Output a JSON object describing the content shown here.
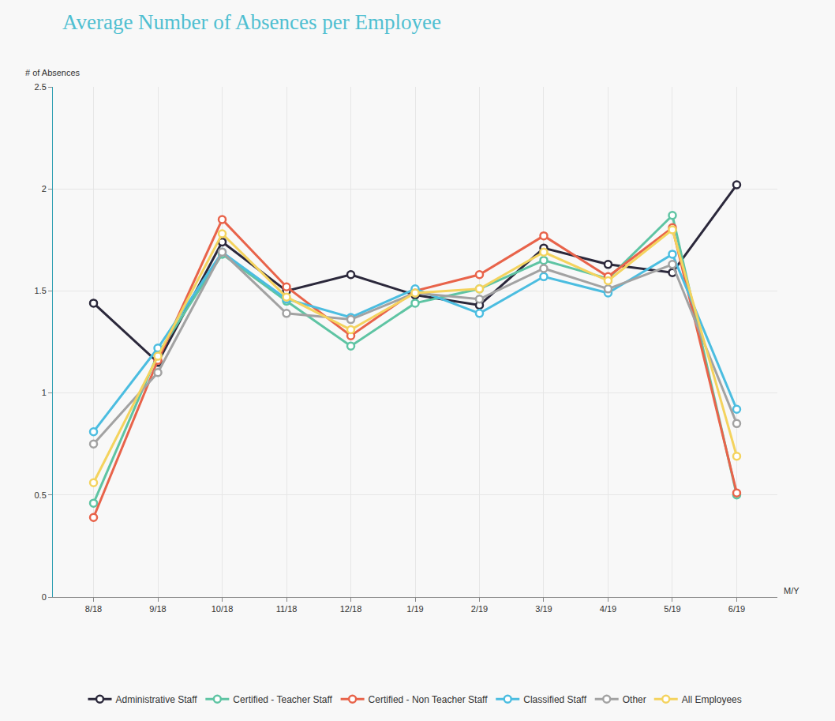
{
  "chart_data": {
    "type": "line",
    "title": "Average Number of Absences per Employee",
    "ylabel": "# of Absences",
    "xlabel": "M/Y",
    "categories": [
      "8/18",
      "9/18",
      "10/18",
      "11/18",
      "12/18",
      "1/19",
      "2/19",
      "3/19",
      "4/19",
      "5/19",
      "6/19"
    ],
    "series": [
      {
        "name": "Administrative Staff",
        "color": "#2b283b",
        "values": [
          1.44,
          1.15,
          1.74,
          1.5,
          1.58,
          1.48,
          1.43,
          1.71,
          1.63,
          1.59,
          2.02
        ]
      },
      {
        "name": "Certified - Teacher Staff",
        "color": "#5ec4a3",
        "values": [
          0.46,
          1.19,
          1.68,
          1.45,
          1.23,
          1.44,
          1.51,
          1.65,
          1.56,
          1.87,
          0.5
        ]
      },
      {
        "name": "Certified - Non Teacher Staff",
        "color": "#e8634a",
        "values": [
          0.39,
          1.16,
          1.85,
          1.52,
          1.28,
          1.5,
          1.58,
          1.77,
          1.57,
          1.81,
          0.51
        ]
      },
      {
        "name": "Classified Staff",
        "color": "#4bbde0",
        "values": [
          0.81,
          1.22,
          1.69,
          1.46,
          1.37,
          1.51,
          1.39,
          1.57,
          1.49,
          1.68,
          0.92
        ]
      },
      {
        "name": "Other",
        "color": "#a2a2a2",
        "values": [
          0.75,
          1.1,
          1.69,
          1.39,
          1.36,
          1.49,
          1.46,
          1.61,
          1.51,
          1.63,
          0.85
        ]
      },
      {
        "name": "All Employees",
        "color": "#f4d35e",
        "values": [
          0.56,
          1.18,
          1.78,
          1.47,
          1.31,
          1.49,
          1.51,
          1.69,
          1.55,
          1.8,
          0.69
        ]
      }
    ],
    "ylim": [
      0,
      2.5
    ],
    "yticks": [
      0,
      0.5,
      1,
      1.5,
      2,
      2.5
    ],
    "grid": true,
    "legend": "bottom",
    "marker": "circle"
  }
}
